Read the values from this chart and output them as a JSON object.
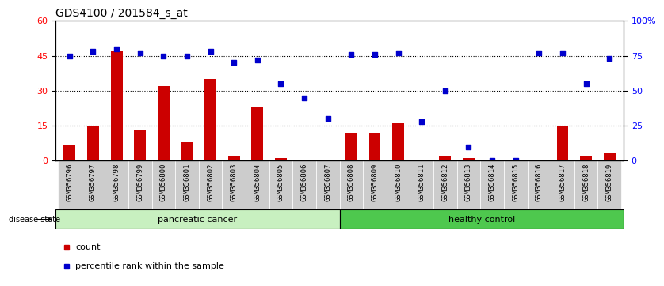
{
  "title": "GDS4100 / 201584_s_at",
  "samples": [
    "GSM356796",
    "GSM356797",
    "GSM356798",
    "GSM356799",
    "GSM356800",
    "GSM356801",
    "GSM356802",
    "GSM356803",
    "GSM356804",
    "GSM356805",
    "GSM356806",
    "GSM356807",
    "GSM356808",
    "GSM356809",
    "GSM356810",
    "GSM356811",
    "GSM356812",
    "GSM356813",
    "GSM356814",
    "GSM356815",
    "GSM356816",
    "GSM356817",
    "GSM356818",
    "GSM356819"
  ],
  "counts": [
    7,
    15,
    47,
    13,
    32,
    8,
    35,
    2,
    23,
    1,
    0.5,
    0.3,
    12,
    12,
    16,
    0.5,
    2,
    1,
    0.3,
    0.5,
    0.5,
    15,
    2,
    3
  ],
  "percentiles": [
    75,
    78,
    80,
    77,
    75,
    75,
    78,
    70,
    72,
    55,
    45,
    30,
    76,
    76,
    77,
    28,
    50,
    10,
    0,
    0,
    77,
    77,
    55,
    73
  ],
  "group1_label": "pancreatic cancer",
  "group1_count": 12,
  "group2_label": "healthy control",
  "left_ylim": [
    0,
    60
  ],
  "right_ylim": [
    0,
    100
  ],
  "left_yticks": [
    0,
    15,
    30,
    45,
    60
  ],
  "right_yticks": [
    0,
    25,
    50,
    75,
    100
  ],
  "right_yticklabels": [
    "0",
    "25",
    "50",
    "75",
    "100%"
  ],
  "bar_color": "#cc0000",
  "dot_color": "#0000cc",
  "bar_width": 0.5,
  "disease_state_label": "disease state",
  "legend_count_label": "count",
  "legend_pct_label": "percentile rank within the sample",
  "group1_color": "#c8f0c0",
  "group2_color": "#4ec84e",
  "tick_bg_color": "#cccccc"
}
